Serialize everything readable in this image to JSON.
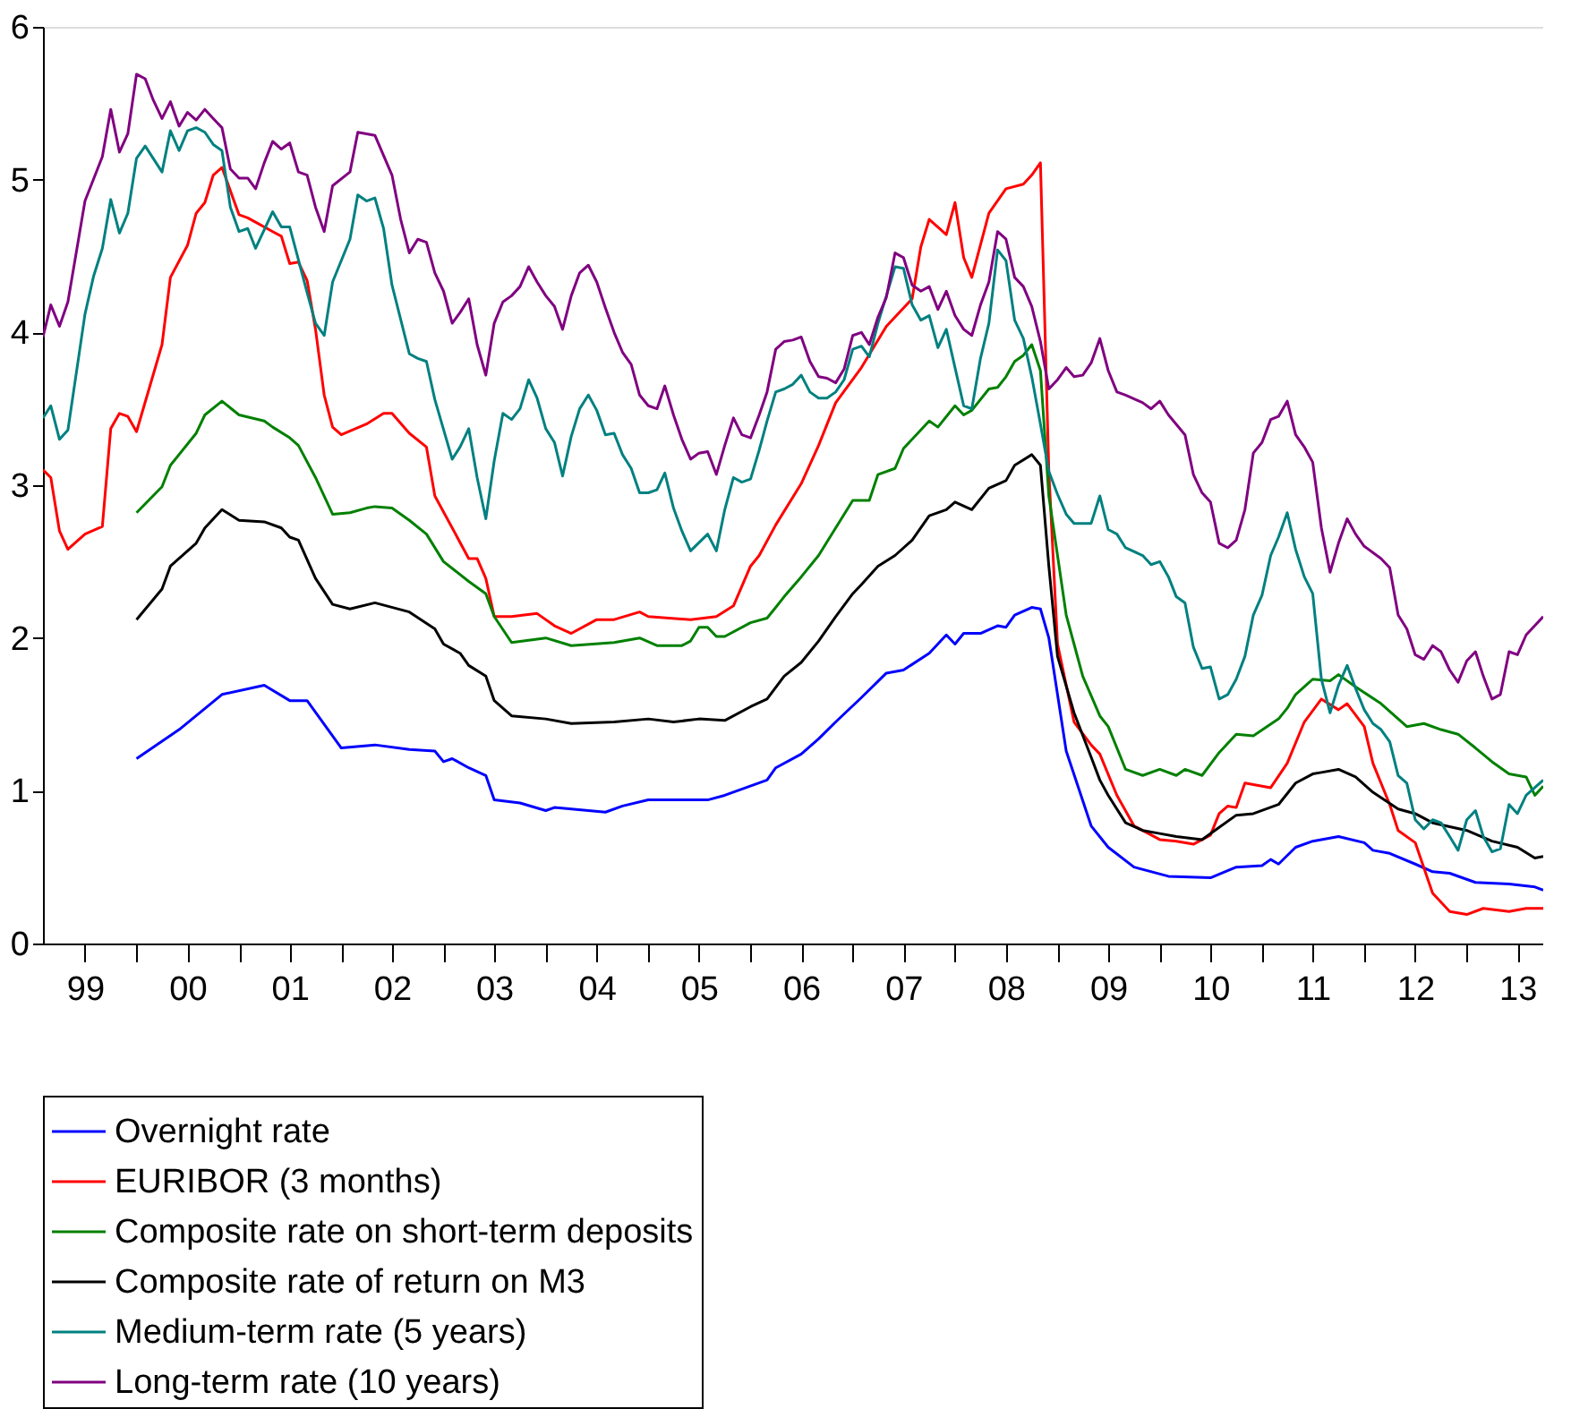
{
  "chart_data": {
    "type": "line",
    "xlim": [
      "1999-02",
      "2013-10"
    ],
    "ylim": [
      0,
      6
    ],
    "yticks": [
      0,
      1,
      2,
      3,
      4,
      5,
      6
    ],
    "xticks": [
      {
        "value": "1999-07",
        "label": "99"
      },
      {
        "value": "2000-07",
        "label": "00"
      },
      {
        "value": "2001-07",
        "label": "01"
      },
      {
        "value": "2002-07",
        "label": "02"
      },
      {
        "value": "2003-07",
        "label": "03"
      },
      {
        "value": "2004-07",
        "label": "04"
      },
      {
        "value": "2005-07",
        "label": "05"
      },
      {
        "value": "2006-07",
        "label": "06"
      },
      {
        "value": "2007-07",
        "label": "07"
      },
      {
        "value": "2008-07",
        "label": "08"
      },
      {
        "value": "2009-07",
        "label": "09"
      },
      {
        "value": "2010-07",
        "label": "10"
      },
      {
        "value": "2011-07",
        "label": "11"
      },
      {
        "value": "2012-07",
        "label": "12"
      },
      {
        "value": "2013-07",
        "label": "13"
      },
      {
        "value": "2000",
        "label": null
      },
      {
        "value": "2001",
        "label": null
      },
      {
        "value": "2002",
        "label": null
      },
      {
        "value": "2003",
        "label": null
      },
      {
        "value": "2004",
        "label": null
      },
      {
        "value": "2005",
        "label": null
      },
      {
        "value": "2006",
        "label": null
      },
      {
        "value": "2007",
        "label": null
      },
      {
        "value": "2008",
        "label": null
      },
      {
        "value": "2009",
        "label": null
      },
      {
        "value": "2010",
        "label": null
      },
      {
        "value": "2011",
        "label": null
      },
      {
        "value": "2012",
        "label": null
      },
      {
        "value": "2013",
        "label": null
      }
    ],
    "grid": false,
    "legend": "bottom",
    "marker": "none",
    "line_style": "solid",
    "series": [
      {
        "name": "Overnight rate",
        "color": "#0000ff",
        "x": [
          "2000-01",
          "2000-06",
          "2000-11",
          "2001-04",
          "2001-07",
          "2001-09",
          "2002-01",
          "2002-05",
          "2002-09",
          "2002-12",
          "2003-01",
          "2003-02",
          "2003-04",
          "2003-06",
          "2003-07",
          "2003-10",
          "2004-01",
          "2004-02",
          "2004-08",
          "2004-10",
          "2005-01",
          "2005-08",
          "2005-10",
          "2006-03",
          "2006-04",
          "2006-07",
          "2006-09",
          "2006-11",
          "2007-02",
          "2007-05",
          "2007-07",
          "2007-10",
          "2007-12",
          "2008-01",
          "2008-02",
          "2008-04",
          "2008-06",
          "2008-07",
          "2008-08",
          "2008-10",
          "2008-11",
          "2008-12",
          "2009-02",
          "2009-05",
          "2009-07",
          "2009-10",
          "2010-02",
          "2010-07",
          "2010-10",
          "2011-01",
          "2011-02",
          "2011-03",
          "2011-05",
          "2011-07",
          "2011-10",
          "2012-01",
          "2012-02",
          "2012-04",
          "2012-07",
          "2012-09",
          "2012-11",
          "2013-02",
          "2013-06",
          "2013-09",
          "2013-10"
        ],
        "values": [
          1.21,
          1.4,
          1.63,
          1.69,
          1.59,
          1.59,
          1.28,
          1.3,
          1.27,
          1.26,
          1.19,
          1.21,
          1.15,
          1.1,
          0.94,
          0.92,
          0.87,
          0.89,
          0.86,
          0.9,
          0.94,
          0.94,
          0.97,
          1.07,
          1.15,
          1.24,
          1.34,
          1.45,
          1.61,
          1.77,
          1.79,
          1.9,
          2.02,
          1.96,
          2.03,
          2.03,
          2.08,
          2.07,
          2.15,
          2.2,
          2.19,
          2.0,
          1.26,
          0.77,
          0.63,
          0.5,
          0.44,
          0.43,
          0.5,
          0.51,
          0.55,
          0.52,
          0.63,
          0.67,
          0.7,
          0.66,
          0.61,
          0.59,
          0.52,
          0.47,
          0.46,
          0.4,
          0.39,
          0.37,
          0.35
        ]
      },
      {
        "name": "EURIBOR (3 months)",
        "color": "#ff0000",
        "x": [
          "1999-02",
          "1999-03",
          "1999-04",
          "1999-05",
          "1999-07",
          "1999-09",
          "1999-10",
          "1999-11",
          "1999-12",
          "2000-01",
          "2000-04",
          "2000-05",
          "2000-07",
          "2000-08",
          "2000-09",
          "2000-10",
          "2000-11",
          "2001-01",
          "2001-02",
          "2001-05",
          "2001-06",
          "2001-07",
          "2001-08",
          "2001-09",
          "2001-10",
          "2001-11",
          "2001-12",
          "2002-01",
          "2002-04",
          "2002-06",
          "2002-07",
          "2002-09",
          "2002-11",
          "2002-12",
          "2003-04",
          "2003-05",
          "2003-06",
          "2003-07",
          "2003-09",
          "2003-12",
          "2004-02",
          "2004-04",
          "2004-07",
          "2004-09",
          "2004-12",
          "2005-01",
          "2005-06",
          "2005-09",
          "2005-11",
          "2006-01",
          "2006-02",
          "2006-04",
          "2006-07",
          "2006-09",
          "2006-11",
          "2007-02",
          "2007-05",
          "2007-08",
          "2007-09",
          "2007-10",
          "2007-12",
          "2008-01",
          "2008-02",
          "2008-03",
          "2008-05",
          "2008-07",
          "2008-09",
          "2008-10",
          "2008-11",
          "2008-12",
          "2009-01",
          "2009-03",
          "2009-05",
          "2009-06",
          "2009-08",
          "2009-10",
          "2010-01",
          "2010-03",
          "2010-05",
          "2010-07",
          "2010-08",
          "2010-09",
          "2010-10",
          "2010-11",
          "2011-02",
          "2011-04",
          "2011-06",
          "2011-08",
          "2011-10",
          "2011-11",
          "2012-01",
          "2012-02",
          "2012-04",
          "2012-05",
          "2012-07",
          "2012-09",
          "2012-11",
          "2013-01",
          "2013-03",
          "2013-06",
          "2013-08",
          "2013-10"
        ],
        "values": [
          3.1,
          3.05,
          2.7,
          2.58,
          2.68,
          2.73,
          3.37,
          3.47,
          3.45,
          3.35,
          3.92,
          4.36,
          4.57,
          4.78,
          4.85,
          5.03,
          5.08,
          4.77,
          4.75,
          4.66,
          4.63,
          4.45,
          4.46,
          4.34,
          4.02,
          3.59,
          3.38,
          3.33,
          3.4,
          3.47,
          3.47,
          3.34,
          3.25,
          2.93,
          2.52,
          2.52,
          2.39,
          2.14,
          2.14,
          2.16,
          2.08,
          2.03,
          2.12,
          2.12,
          2.17,
          2.14,
          2.12,
          2.14,
          2.21,
          2.47,
          2.54,
          2.74,
          3.01,
          3.26,
          3.54,
          3.77,
          4.04,
          4.22,
          4.56,
          4.74,
          4.64,
          4.85,
          4.49,
          4.36,
          4.78,
          4.94,
          4.97,
          5.03,
          5.11,
          3.09,
          1.96,
          1.45,
          1.3,
          1.24,
          0.97,
          0.77,
          0.68,
          0.67,
          0.65,
          0.71,
          0.85,
          0.9,
          0.89,
          1.05,
          1.02,
          1.18,
          1.45,
          1.6,
          1.53,
          1.57,
          1.42,
          1.18,
          0.91,
          0.74,
          0.66,
          0.33,
          0.21,
          0.19,
          0.23,
          0.21,
          0.23,
          0.23
        ]
      },
      {
        "name": "Composite rate on short-term deposits",
        "color": "#008000",
        "x": [
          "2000-01",
          "2000-04",
          "2000-05",
          "2000-08",
          "2000-09",
          "2000-11",
          "2001-01",
          "2001-04",
          "2001-05",
          "2001-07",
          "2001-08",
          "2001-10",
          "2001-12",
          "2002-02",
          "2002-04",
          "2002-05",
          "2002-07",
          "2002-09",
          "2002-11",
          "2003-01",
          "2003-04",
          "2003-06",
          "2003-07",
          "2003-09",
          "2004-01",
          "2004-04",
          "2004-09",
          "2004-12",
          "2005-02",
          "2005-05",
          "2005-06",
          "2005-07",
          "2005-08",
          "2005-09",
          "2005-10",
          "2006-01",
          "2006-03",
          "2006-04",
          "2006-05",
          "2006-07",
          "2006-09",
          "2006-11",
          "2007-01",
          "2007-03",
          "2007-04",
          "2007-06",
          "2007-07",
          "2007-10",
          "2007-11",
          "2008-01",
          "2008-02",
          "2008-03",
          "2008-05",
          "2008-06",
          "2008-07",
          "2008-08",
          "2008-09",
          "2008-10",
          "2008-11",
          "2008-12",
          "2009-02",
          "2009-03",
          "2009-04",
          "2009-06",
          "2009-07",
          "2009-09",
          "2009-11",
          "2010-01",
          "2010-03",
          "2010-04",
          "2010-06",
          "2010-08",
          "2010-10",
          "2010-12",
          "2011-03",
          "2011-04",
          "2011-05",
          "2011-07",
          "2011-09",
          "2011-10",
          "2011-12",
          "2012-03",
          "2012-06",
          "2012-08",
          "2012-10",
          "2012-12",
          "2013-02",
          "2013-04",
          "2013-06",
          "2013-08",
          "2013-09",
          "2013-10"
        ],
        "values": [
          2.82,
          2.99,
          3.13,
          3.34,
          3.46,
          3.55,
          3.46,
          3.42,
          3.38,
          3.31,
          3.26,
          3.05,
          2.81,
          2.82,
          2.85,
          2.86,
          2.85,
          2.77,
          2.68,
          2.5,
          2.37,
          2.29,
          2.14,
          1.97,
          2.0,
          1.95,
          1.97,
          2.0,
          1.95,
          1.95,
          1.98,
          2.07,
          2.07,
          2.01,
          2.01,
          2.1,
          2.13,
          2.2,
          2.27,
          2.4,
          2.54,
          2.72,
          2.9,
          2.9,
          3.07,
          3.11,
          3.24,
          3.42,
          3.38,
          3.52,
          3.46,
          3.49,
          3.63,
          3.64,
          3.71,
          3.81,
          3.85,
          3.92,
          3.75,
          2.93,
          2.15,
          1.96,
          1.75,
          1.49,
          1.42,
          1.14,
          1.1,
          1.14,
          1.1,
          1.14,
          1.1,
          1.25,
          1.37,
          1.36,
          1.47,
          1.54,
          1.63,
          1.73,
          1.72,
          1.76,
          1.68,
          1.57,
          1.42,
          1.44,
          1.4,
          1.37,
          1.28,
          1.19,
          1.11,
          1.09,
          0.97,
          1.03
        ]
      },
      {
        "name": "Composite rate of return on M3",
        "color": "#000000",
        "x": [
          "2000-01",
          "2000-04",
          "2000-05",
          "2000-08",
          "2000-09",
          "2000-11",
          "2001-01",
          "2001-04",
          "2001-06",
          "2001-07",
          "2001-08",
          "2001-10",
          "2001-12",
          "2002-02",
          "2002-05",
          "2002-09",
          "2002-12",
          "2003-01",
          "2003-03",
          "2003-04",
          "2003-06",
          "2003-07",
          "2003-09",
          "2004-01",
          "2004-04",
          "2004-09",
          "2005-01",
          "2005-04",
          "2005-07",
          "2005-10",
          "2006-01",
          "2006-03",
          "2006-05",
          "2006-07",
          "2006-09",
          "2006-11",
          "2007-01",
          "2007-02",
          "2007-04",
          "2007-06",
          "2007-08",
          "2007-10",
          "2007-12",
          "2008-01",
          "2008-03",
          "2008-05",
          "2008-07",
          "2008-08",
          "2008-10",
          "2008-11",
          "2008-12",
          "2009-01",
          "2009-03",
          "2009-05",
          "2009-06",
          "2009-07",
          "2009-09",
          "2009-11",
          "2010-01",
          "2010-03",
          "2010-06",
          "2010-08",
          "2010-10",
          "2010-12",
          "2011-03",
          "2011-05",
          "2011-07",
          "2011-08",
          "2011-10",
          "2011-12",
          "2012-02",
          "2012-05",
          "2012-07",
          "2012-09",
          "2013-01",
          "2013-04",
          "2013-07",
          "2013-09",
          "2013-10"
        ],
        "values": [
          2.12,
          2.32,
          2.47,
          2.62,
          2.72,
          2.84,
          2.77,
          2.76,
          2.72,
          2.66,
          2.64,
          2.39,
          2.22,
          2.19,
          2.23,
          2.17,
          2.06,
          1.96,
          1.9,
          1.82,
          1.75,
          1.59,
          1.49,
          1.47,
          1.44,
          1.45,
          1.47,
          1.45,
          1.47,
          1.46,
          1.55,
          1.6,
          1.75,
          1.84,
          1.98,
          2.14,
          2.29,
          2.35,
          2.47,
          2.54,
          2.64,
          2.8,
          2.84,
          2.89,
          2.84,
          2.98,
          3.03,
          3.13,
          3.2,
          3.13,
          2.47,
          1.88,
          1.51,
          1.22,
          1.07,
          0.97,
          0.79,
          0.74,
          0.72,
          0.7,
          0.68,
          0.76,
          0.84,
          0.85,
          0.91,
          1.05,
          1.11,
          1.12,
          1.14,
          1.09,
          0.99,
          0.88,
          0.85,
          0.79,
          0.74,
          0.67,
          0.63,
          0.56,
          0.57
        ]
      },
      {
        "name": "Medium-term rate (5 years)",
        "color": "#008080",
        "x": [
          "1999-02",
          "1999-03",
          "1999-04",
          "1999-05",
          "1999-07",
          "1999-08",
          "1999-09",
          "1999-10",
          "1999-11",
          "1999-12",
          "2000-01",
          "2000-02",
          "2000-04",
          "2000-05",
          "2000-06",
          "2000-07",
          "2000-08",
          "2000-09",
          "2000-10",
          "2000-11",
          "2000-12",
          "2001-01",
          "2001-02",
          "2001-03",
          "2001-05",
          "2001-06",
          "2001-07",
          "2001-09",
          "2001-10",
          "2001-11",
          "2001-12",
          "2002-02",
          "2002-03",
          "2002-04",
          "2002-05",
          "2002-06",
          "2002-07",
          "2002-09",
          "2002-10",
          "2002-11",
          "2002-12",
          "2003-02",
          "2003-03",
          "2003-04",
          "2003-05",
          "2003-06",
          "2003-07",
          "2003-08",
          "2003-09",
          "2003-10",
          "2003-11",
          "2003-12",
          "2004-01",
          "2004-02",
          "2004-03",
          "2004-04",
          "2004-05",
          "2004-06",
          "2004-07",
          "2004-08",
          "2004-09",
          "2004-10",
          "2004-11",
          "2004-12",
          "2005-01",
          "2005-02",
          "2005-03",
          "2005-04",
          "2005-05",
          "2005-06",
          "2005-08",
          "2005-09",
          "2005-10",
          "2005-11",
          "2005-12",
          "2006-01",
          "2006-02",
          "2006-03",
          "2006-04",
          "2006-05",
          "2006-06",
          "2006-07",
          "2006-08",
          "2006-09",
          "2006-10",
          "2006-11",
          "2006-12",
          "2007-01",
          "2007-02",
          "2007-03",
          "2007-04",
          "2007-05",
          "2007-06",
          "2007-07",
          "2007-08",
          "2007-09",
          "2007-10",
          "2007-11",
          "2007-12",
          "2008-01",
          "2008-02",
          "2008-03",
          "2008-04",
          "2008-05",
          "2008-06",
          "2008-07",
          "2008-08",
          "2008-09",
          "2008-10",
          "2008-11",
          "2008-12",
          "2009-01",
          "2009-02",
          "2009-03",
          "2009-05",
          "2009-06",
          "2009-07",
          "2009-08",
          "2009-09",
          "2009-11",
          "2009-12",
          "2010-01",
          "2010-02",
          "2010-03",
          "2010-04",
          "2010-05",
          "2010-06",
          "2010-07",
          "2010-08",
          "2010-09",
          "2010-10",
          "2010-11",
          "2010-12",
          "2011-01",
          "2011-02",
          "2011-03",
          "2011-04",
          "2011-05",
          "2011-06",
          "2011-07",
          "2011-08",
          "2011-09",
          "2011-10",
          "2011-11",
          "2011-12",
          "2012-01",
          "2012-02",
          "2012-03",
          "2012-04",
          "2012-05",
          "2012-06",
          "2012-07",
          "2012-08",
          "2012-09",
          "2012-10",
          "2012-11",
          "2012-12",
          "2013-01",
          "2013-02",
          "2013-03",
          "2013-04",
          "2013-05",
          "2013-06",
          "2013-07",
          "2013-08",
          "2013-10"
        ],
        "values": [
          3.44,
          3.52,
          3.3,
          3.36,
          4.12,
          4.37,
          4.55,
          4.87,
          4.65,
          4.78,
          5.14,
          5.22,
          5.05,
          5.32,
          5.19,
          5.32,
          5.34,
          5.31,
          5.23,
          5.19,
          4.82,
          4.66,
          4.68,
          4.55,
          4.79,
          4.69,
          4.69,
          4.26,
          4.06,
          3.98,
          4.33,
          4.61,
          4.9,
          4.86,
          4.88,
          4.68,
          4.31,
          3.86,
          3.83,
          3.81,
          3.56,
          3.17,
          3.25,
          3.37,
          3.05,
          2.78,
          3.16,
          3.47,
          3.43,
          3.5,
          3.69,
          3.57,
          3.37,
          3.28,
          3.06,
          3.32,
          3.5,
          3.59,
          3.49,
          3.33,
          3.34,
          3.2,
          3.11,
          2.95,
          2.95,
          2.97,
          3.08,
          2.85,
          2.7,
          2.57,
          2.68,
          2.57,
          2.84,
          3.05,
          3.02,
          3.04,
          3.23,
          3.42,
          3.61,
          3.63,
          3.66,
          3.72,
          3.61,
          3.57,
          3.57,
          3.61,
          3.69,
          3.89,
          3.91,
          3.84,
          4.06,
          4.24,
          4.43,
          4.42,
          4.18,
          4.08,
          4.11,
          3.9,
          4.02,
          3.77,
          3.52,
          3.5,
          3.83,
          4.06,
          4.54,
          4.47,
          4.08,
          3.96,
          3.71,
          3.4,
          3.09,
          2.94,
          2.81,
          2.75,
          2.75,
          2.93,
          2.71,
          2.68,
          2.59,
          2.54,
          2.48,
          2.5,
          2.4,
          2.27,
          2.23,
          1.94,
          1.8,
          1.81,
          1.6,
          1.63,
          1.73,
          1.88,
          2.15,
          2.28,
          2.54,
          2.66,
          2.82,
          2.58,
          2.4,
          2.29,
          1.73,
          1.51,
          1.69,
          1.82,
          1.67,
          1.53,
          1.44,
          1.4,
          1.32,
          1.1,
          1.05,
          0.81,
          0.75,
          0.81,
          0.79,
          0.7,
          0.61,
          0.81,
          0.87,
          0.7,
          0.6,
          0.62,
          0.91,
          0.85,
          0.97,
          1.07
        ]
      },
      {
        "name": "Long-term rate (10 years)",
        "color": "#800080",
        "x": [
          "1999-02",
          "1999-03",
          "1999-04",
          "1999-05",
          "1999-07",
          "1999-09",
          "1999-10",
          "1999-11",
          "1999-12",
          "2000-01",
          "2000-02",
          "2000-03",
          "2000-04",
          "2000-05",
          "2000-06",
          "2000-07",
          "2000-08",
          "2000-09",
          "2000-10",
          "2000-11",
          "2000-12",
          "2001-01",
          "2001-02",
          "2001-03",
          "2001-04",
          "2001-05",
          "2001-06",
          "2001-07",
          "2001-08",
          "2001-09",
          "2001-10",
          "2001-11",
          "2001-12",
          "2002-02",
          "2002-03",
          "2002-05",
          "2002-07",
          "2002-08",
          "2002-09",
          "2002-10",
          "2002-11",
          "2002-12",
          "2003-01",
          "2003-02",
          "2003-03",
          "2003-04",
          "2003-05",
          "2003-06",
          "2003-07",
          "2003-08",
          "2003-09",
          "2003-10",
          "2003-11",
          "2003-12",
          "2004-01",
          "2004-02",
          "2004-03",
          "2004-04",
          "2004-05",
          "2004-06",
          "2004-07",
          "2004-08",
          "2004-09",
          "2004-10",
          "2004-11",
          "2004-12",
          "2005-01",
          "2005-02",
          "2005-03",
          "2005-04",
          "2005-05",
          "2005-06",
          "2005-07",
          "2005-08",
          "2005-09",
          "2005-10",
          "2005-11",
          "2005-12",
          "2006-01",
          "2006-02",
          "2006-03",
          "2006-04",
          "2006-05",
          "2006-06",
          "2006-07",
          "2006-08",
          "2006-09",
          "2006-10",
          "2006-11",
          "2006-12",
          "2007-01",
          "2007-02",
          "2007-03",
          "2007-04",
          "2007-05",
          "2007-06",
          "2007-07",
          "2007-08",
          "2007-09",
          "2007-10",
          "2007-11",
          "2007-12",
          "2008-01",
          "2008-02",
          "2008-03",
          "2008-04",
          "2008-05",
          "2008-06",
          "2008-07",
          "2008-08",
          "2008-09",
          "2008-10",
          "2008-11",
          "2008-12",
          "2009-01",
          "2009-02",
          "2009-03",
          "2009-04",
          "2009-05",
          "2009-06",
          "2009-07",
          "2009-08",
          "2009-09",
          "2009-11",
          "2009-12",
          "2010-01",
          "2010-02",
          "2010-04",
          "2010-05",
          "2010-06",
          "2010-07",
          "2010-08",
          "2010-09",
          "2010-10",
          "2010-11",
          "2010-12",
          "2011-01",
          "2011-02",
          "2011-03",
          "2011-04",
          "2011-05",
          "2011-06",
          "2011-07",
          "2011-08",
          "2011-09",
          "2011-10",
          "2011-11",
          "2011-12",
          "2012-01",
          "2012-03",
          "2012-04",
          "2012-05",
          "2012-06",
          "2012-07",
          "2012-08",
          "2012-09",
          "2012-10",
          "2012-11",
          "2012-12",
          "2013-01",
          "2013-02",
          "2013-03",
          "2013-04",
          "2013-05",
          "2013-06",
          "2013-07",
          "2013-08",
          "2013-10"
        ],
        "values": [
          3.97,
          4.18,
          4.04,
          4.2,
          4.86,
          5.15,
          5.46,
          5.18,
          5.3,
          5.69,
          5.66,
          5.52,
          5.4,
          5.51,
          5.35,
          5.44,
          5.39,
          5.46,
          5.4,
          5.34,
          5.07,
          5.01,
          5.01,
          4.94,
          5.11,
          5.25,
          5.2,
          5.24,
          5.05,
          5.03,
          4.82,
          4.66,
          4.96,
          5.05,
          5.31,
          5.29,
          5.03,
          4.74,
          4.52,
          4.61,
          4.59,
          4.39,
          4.27,
          4.06,
          4.13,
          4.22,
          3.92,
          3.72,
          4.06,
          4.2,
          4.24,
          4.3,
          4.43,
          4.33,
          4.24,
          4.17,
          4.02,
          4.24,
          4.39,
          4.44,
          4.33,
          4.16,
          4.0,
          3.87,
          3.79,
          3.59,
          3.52,
          3.5,
          3.65,
          3.46,
          3.3,
          3.17,
          3.21,
          3.22,
          3.07,
          3.26,
          3.44,
          3.33,
          3.31,
          3.46,
          3.61,
          3.89,
          3.94,
          3.95,
          3.97,
          3.81,
          3.71,
          3.7,
          3.67,
          3.76,
          3.98,
          4.0,
          3.92,
          4.1,
          4.23,
          4.52,
          4.49,
          4.31,
          4.27,
          4.3,
          4.15,
          4.27,
          4.11,
          4.02,
          3.98,
          4.18,
          4.33,
          4.66,
          4.61,
          4.36,
          4.3,
          4.17,
          3.94,
          3.63,
          3.69,
          3.77,
          3.71,
          3.72,
          3.8,
          3.96,
          3.75,
          3.61,
          3.59,
          3.54,
          3.5,
          3.55,
          3.46,
          3.33,
          3.07,
          2.95,
          2.89,
          2.62,
          2.59,
          2.64,
          2.84,
          3.21,
          3.28,
          3.43,
          3.45,
          3.55,
          3.33,
          3.25,
          3.15,
          2.72,
          2.43,
          2.62,
          2.78,
          2.68,
          2.6,
          2.52,
          2.46,
          2.15,
          2.06,
          1.89,
          1.86,
          1.95,
          1.91,
          1.79,
          1.71,
          1.85,
          1.91,
          1.75,
          1.6,
          1.63,
          1.91,
          1.89,
          2.02,
          2.14
        ]
      }
    ]
  }
}
